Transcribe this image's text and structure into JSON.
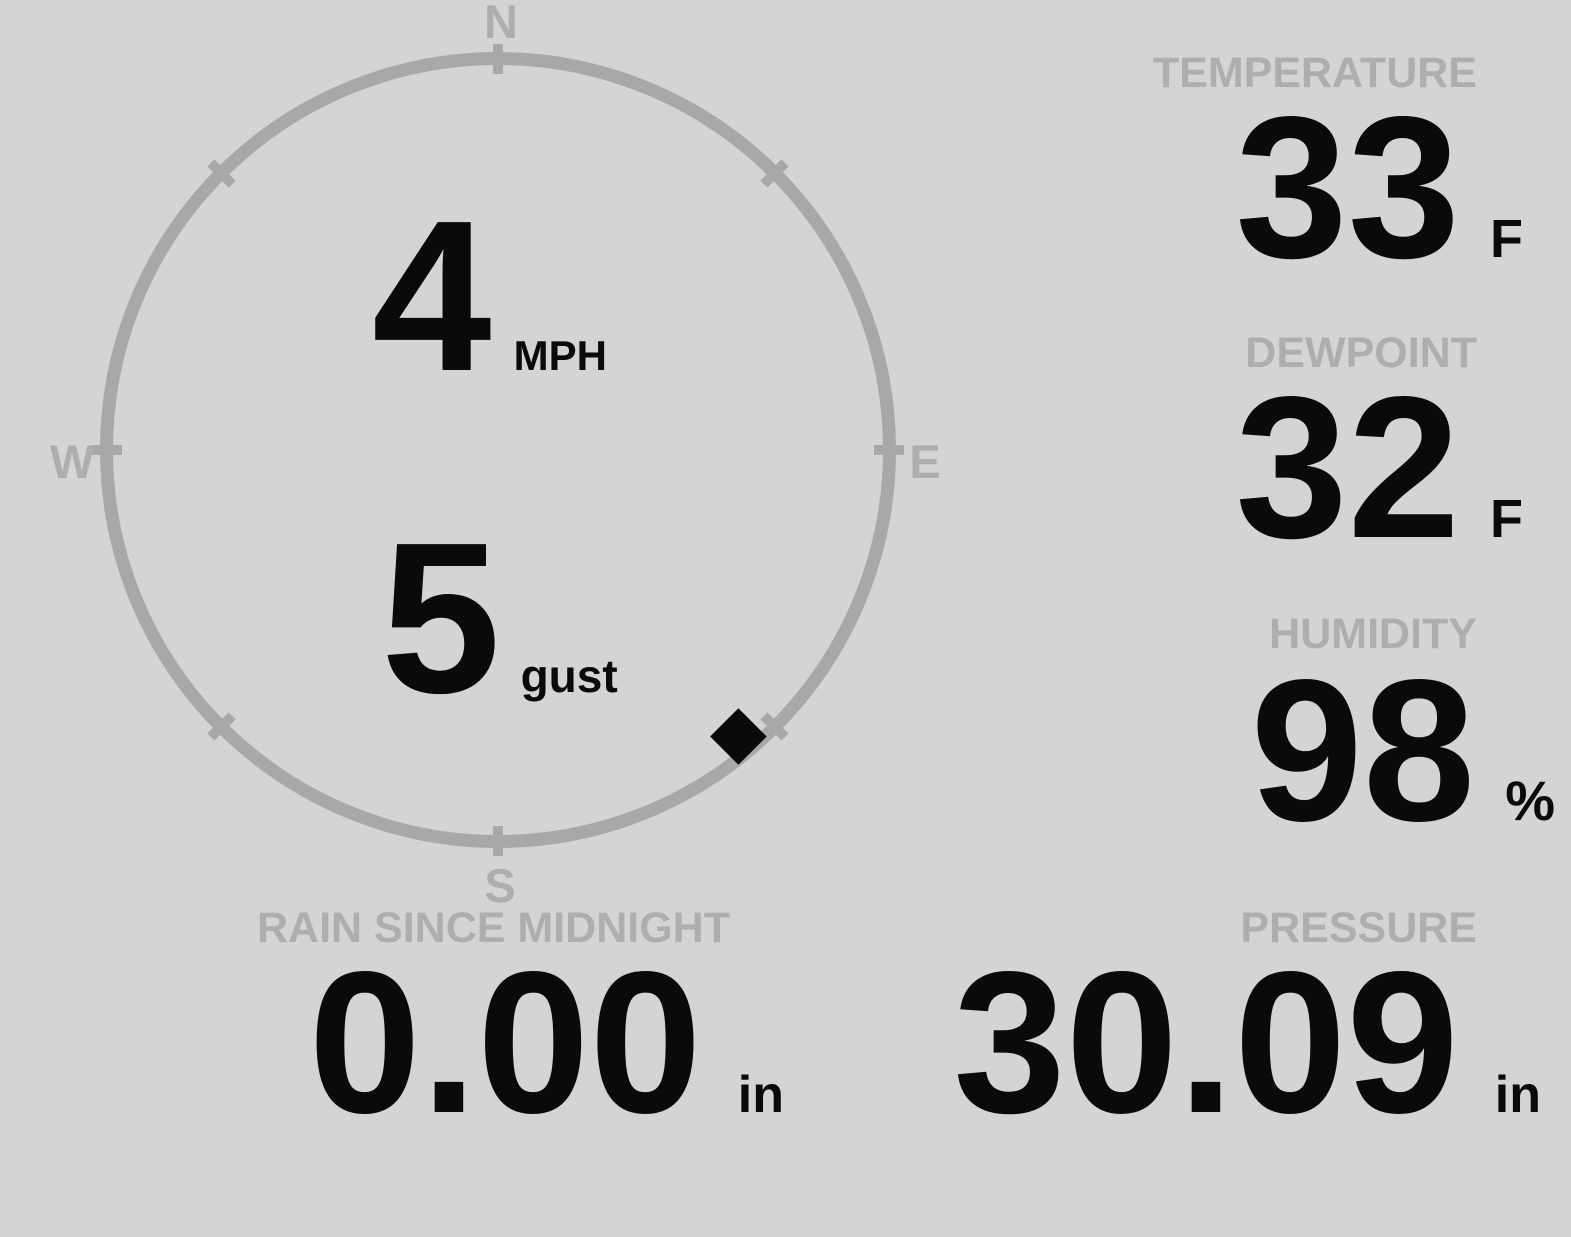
{
  "theme": {
    "background": "#d4d4d4",
    "muted_text": "#aeaeae",
    "ring": "#a8a8a8",
    "ink": "#0a0a0a"
  },
  "compass": {
    "north": "N",
    "east": "E",
    "south": "S",
    "west": "W"
  },
  "wind": {
    "speed": "4",
    "speed_unit": "MPH",
    "gust": "5",
    "gust_unit": "gust",
    "direction_degrees": 140
  },
  "metrics": {
    "temperature": {
      "label": "TEMPERATURE",
      "value": "33",
      "unit": "F"
    },
    "dewpoint": {
      "label": "DEWPOINT",
      "value": "32",
      "unit": "F"
    },
    "humidity": {
      "label": "HUMIDITY",
      "value": "98",
      "unit": "%"
    },
    "rain": {
      "label": "RAIN SINCE MIDNIGHT",
      "value": "0.00",
      "unit": "in"
    },
    "pressure": {
      "label": "PRESSURE",
      "value": "30.09",
      "unit": "in"
    }
  }
}
